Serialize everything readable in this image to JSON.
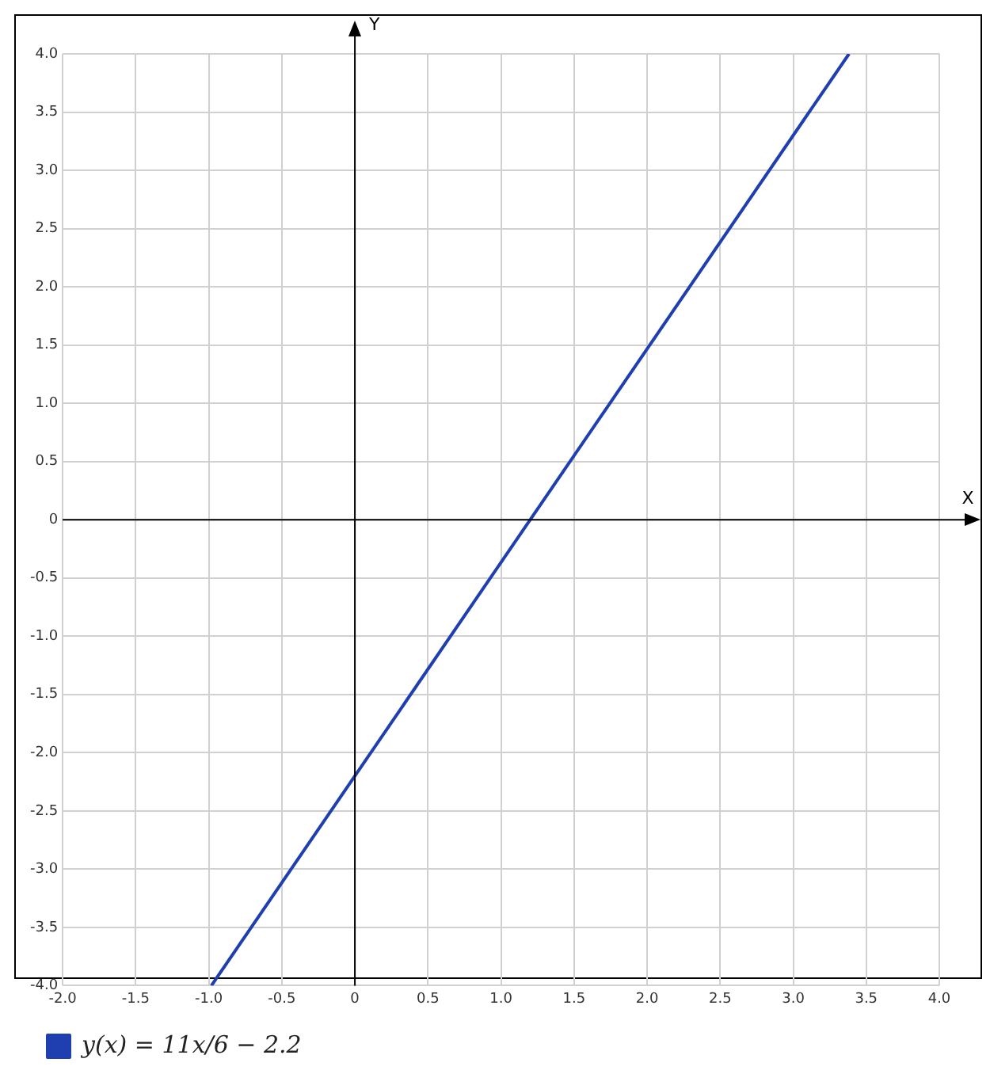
{
  "chart_data": {
    "type": "line",
    "xlabel": "X",
    "ylabel": "Y",
    "xlim": [
      -2,
      4
    ],
    "ylim": [
      -4,
      4
    ],
    "xticks": [
      {
        "value": -2,
        "label": "-2.0"
      },
      {
        "value": -1.5,
        "label": "-1.5"
      },
      {
        "value": -1,
        "label": "-1.0"
      },
      {
        "value": -0.5,
        "label": "-0.5"
      },
      0,
      {
        "value": 0.5,
        "label": "0.5"
      },
      {
        "value": 1,
        "label": "1.0"
      },
      {
        "value": 1.5,
        "label": "1.5"
      },
      {
        "value": 2,
        "label": "2.0"
      },
      {
        "value": 2.5,
        "label": "2.5"
      },
      {
        "value": 3,
        "label": "3.0"
      },
      {
        "value": 3.5,
        "label": "3.5"
      },
      {
        "value": 4,
        "label": "4.0"
      }
    ],
    "yticks": [
      {
        "value": -4,
        "label": "-4.0"
      },
      {
        "value": -3.5,
        "label": "-3.5"
      },
      {
        "value": -3,
        "label": "-3.0"
      },
      {
        "value": -2.5,
        "label": "-2.5"
      },
      {
        "value": -2,
        "label": "-2.0"
      },
      {
        "value": -1.5,
        "label": "-1.5"
      },
      {
        "value": -1,
        "label": "-1.0"
      },
      {
        "value": -0.5,
        "label": "-0.5"
      },
      0,
      {
        "value": 0.5,
        "label": "0.5"
      },
      {
        "value": 1,
        "label": "1.0"
      },
      {
        "value": 1.5,
        "label": "1.5"
      },
      {
        "value": 2,
        "label": "2.0"
      },
      {
        "value": 2.5,
        "label": "2.5"
      },
      {
        "value": 3,
        "label": "3.0"
      },
      {
        "value": 3.5,
        "label": "3.5"
      },
      {
        "value": 4,
        "label": "4.0"
      }
    ],
    "grid": true,
    "legend": "bottom",
    "marker": "none",
    "line_style": "solid",
    "series": [
      {
        "name": "y(x) = 11x/6 − 2.2",
        "color": "#1f3fb0",
        "x": [
          -0.982,
          3.382
        ],
        "values": [
          -4,
          4
        ]
      }
    ]
  }
}
